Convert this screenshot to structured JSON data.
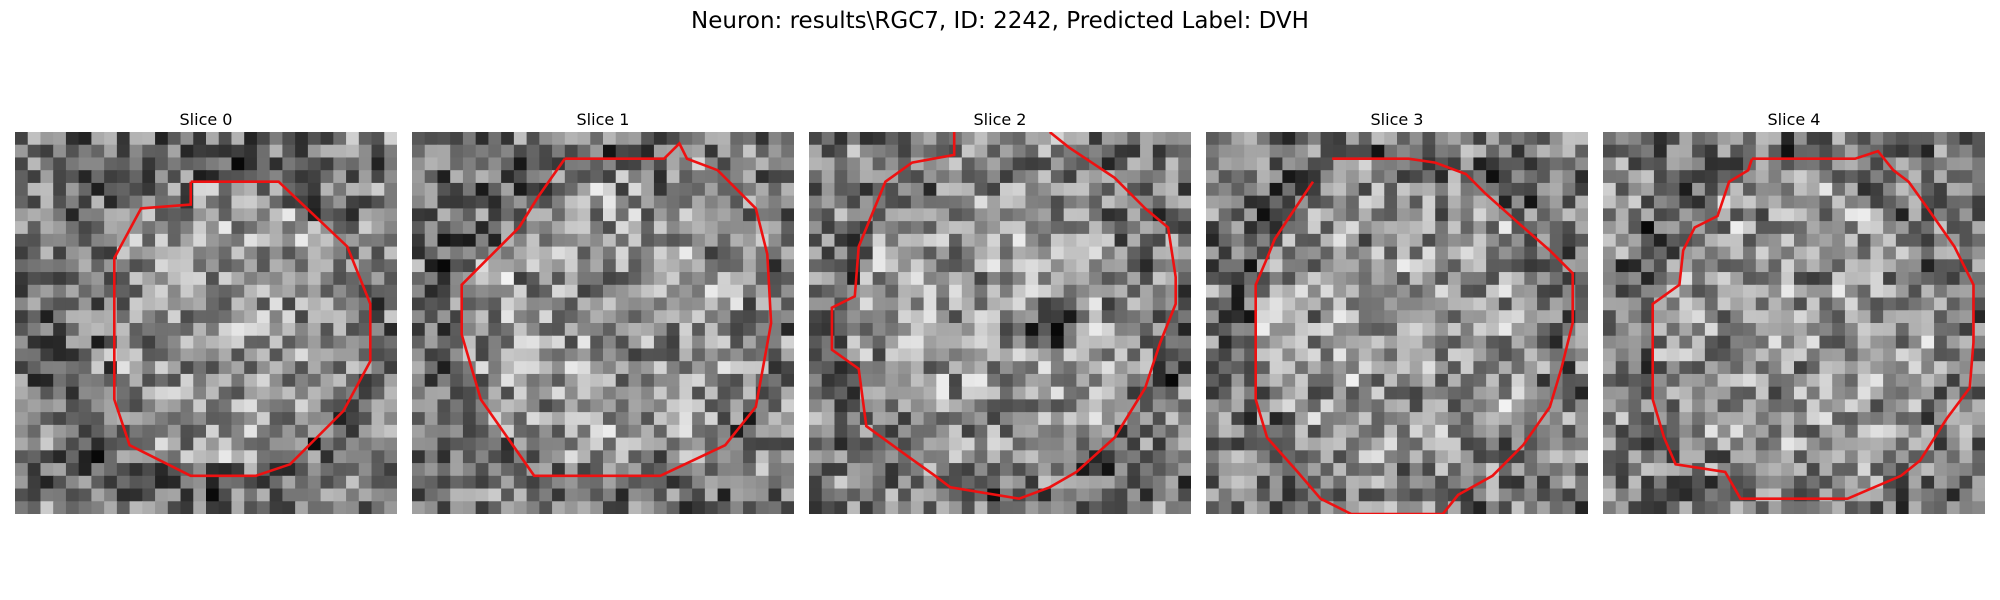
{
  "figure": {
    "title": "Neuron: results\\RGC7, ID: 2242, Predicted Label: DVH",
    "contour_color": "#ee1111",
    "image_colormap": "gray",
    "slices": [
      {
        "title": "Slice 0"
      },
      {
        "title": "Slice 1"
      },
      {
        "title": "Slice 2"
      },
      {
        "title": "Slice 3"
      },
      {
        "title": "Slice 4"
      }
    ]
  }
}
